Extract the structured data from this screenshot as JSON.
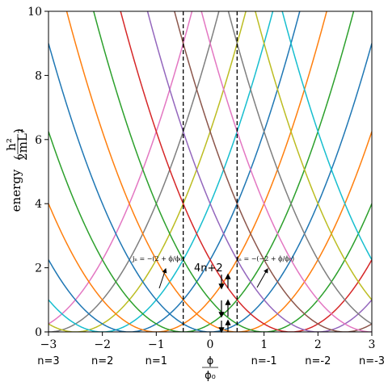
{
  "chart_data": {
    "type": "line",
    "title": "",
    "xlabel": "ϕ/ϕ₀",
    "xlabel_num": "ϕ",
    "xlabel_den": "ϕ₀",
    "ylabel": "energy",
    "ylabel_unit_num": "h²",
    "ylabel_unit_den": "2mL²",
    "xlim": [
      -3,
      3
    ],
    "ylim": [
      0,
      10
    ],
    "xticks": [
      -3,
      -2,
      -1,
      0,
      1,
      2,
      3
    ],
    "xtick_labels": [
      "−3",
      "−2",
      "−1",
      "0",
      "1",
      "2",
      "3"
    ],
    "yticks": [
      0,
      2,
      4,
      6,
      8,
      10
    ],
    "ytick_labels": [
      "0",
      "2",
      "4",
      "6",
      "8",
      "10"
    ],
    "n_labels": [
      {
        "x": -3,
        "text": "n=3"
      },
      {
        "x": -2,
        "text": "n=2"
      },
      {
        "x": -1,
        "text": "n=1"
      },
      {
        "x": 1,
        "text": "n=-1"
      },
      {
        "x": 2,
        "text": "n=-2"
      },
      {
        "x": 3,
        "text": "n=-3"
      }
    ],
    "curve_formula": "E = (ϕ/ϕ₀ − c)²",
    "series": [
      {
        "center": -3.5,
        "color": "#e377c2"
      },
      {
        "center": -3.0,
        "color": "#7f7f7f"
      },
      {
        "center": -2.5,
        "color": "#bcbd22"
      },
      {
        "center": -2.0,
        "color": "#17becf"
      },
      {
        "center": -1.5,
        "color": "#1f77b4"
      },
      {
        "center": -1.0,
        "color": "#ff7f0e"
      },
      {
        "center": -0.5,
        "color": "#2ca02c"
      },
      {
        "center": 0.0,
        "color": "#1f77b4"
      },
      {
        "center": 0.5,
        "color": "#ff7f0e"
      },
      {
        "center": 1.0,
        "color": "#2ca02c"
      },
      {
        "center": 1.5,
        "color": "#d62728"
      },
      {
        "center": 2.0,
        "color": "#9467bd"
      },
      {
        "center": 2.5,
        "color": "#8c564b"
      },
      {
        "center": 3.0,
        "color": "#e377c2"
      },
      {
        "center": 3.5,
        "color": "#7f7f7f"
      },
      {
        "center": 4.0,
        "color": "#bcbd22"
      },
      {
        "center": 4.5,
        "color": "#17becf"
      }
    ],
    "vlines": [
      -0.5,
      0.5
    ],
    "annotations": {
      "left_formula": "jₙ = −(2 + ϕ/ϕ₀)",
      "right_formula": "jₙ = −(−2 + ϕ/ϕ₀)",
      "center_text": "4n+2"
    }
  }
}
